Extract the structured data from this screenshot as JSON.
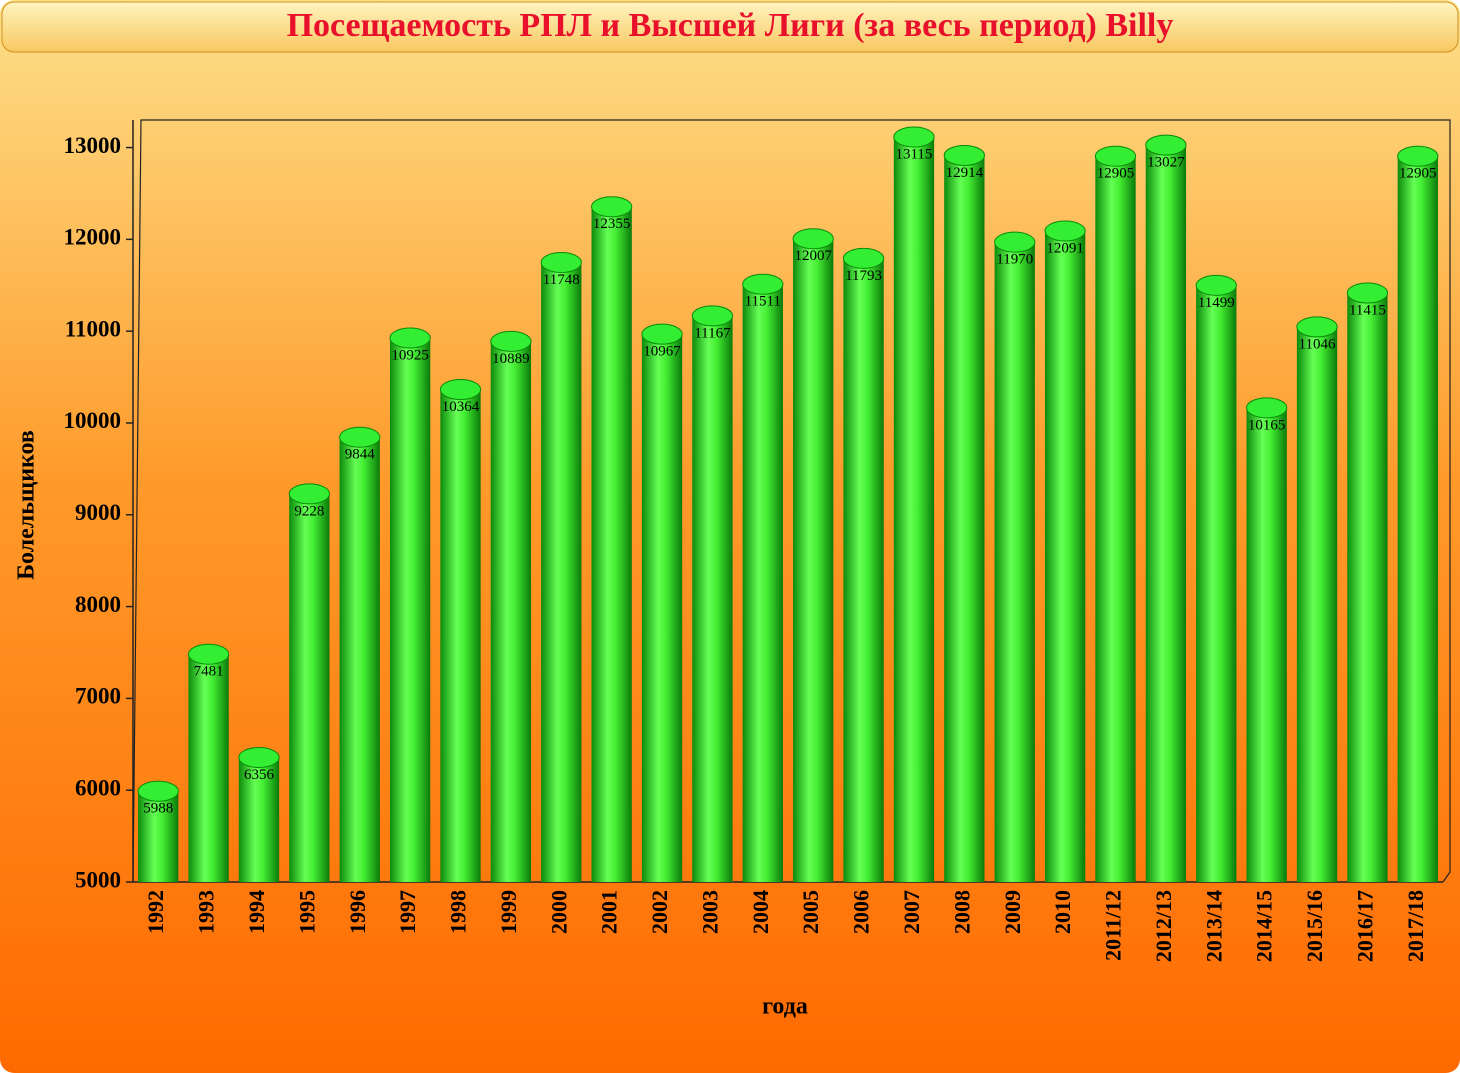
{
  "chart_data": {
    "type": "bar",
    "title": "Посещаемость РПЛ и Высшей Лиги (за весь период) Billy",
    "x_label": "года",
    "y_label": "Болельщиков",
    "categories": [
      "1992",
      "1993",
      "1994",
      "1995",
      "1996",
      "1997",
      "1998",
      "1999",
      "2000",
      "2001",
      "2002",
      "2003",
      "2004",
      "2005",
      "2006",
      "2007",
      "2008",
      "2009",
      "2010",
      "2011/12",
      "2012/13",
      "2013/14",
      "2014/15",
      "2015/16",
      "2016/17",
      "2017/18"
    ],
    "values": [
      5988,
      7481,
      6356,
      9228,
      9844,
      10925,
      10364,
      10889,
      11748,
      12355,
      10967,
      11167,
      11511,
      12007,
      11793,
      13115,
      12914,
      11970,
      12091,
      12905,
      13027,
      11499,
      10165,
      11046,
      11415,
      12905
    ],
    "color": "#33ee33",
    "ylim": [
      5000,
      13300
    ],
    "yticks": [
      5000,
      6000,
      7000,
      8000,
      9000,
      10000,
      11000,
      12000,
      13000
    ],
    "grid": false
  }
}
